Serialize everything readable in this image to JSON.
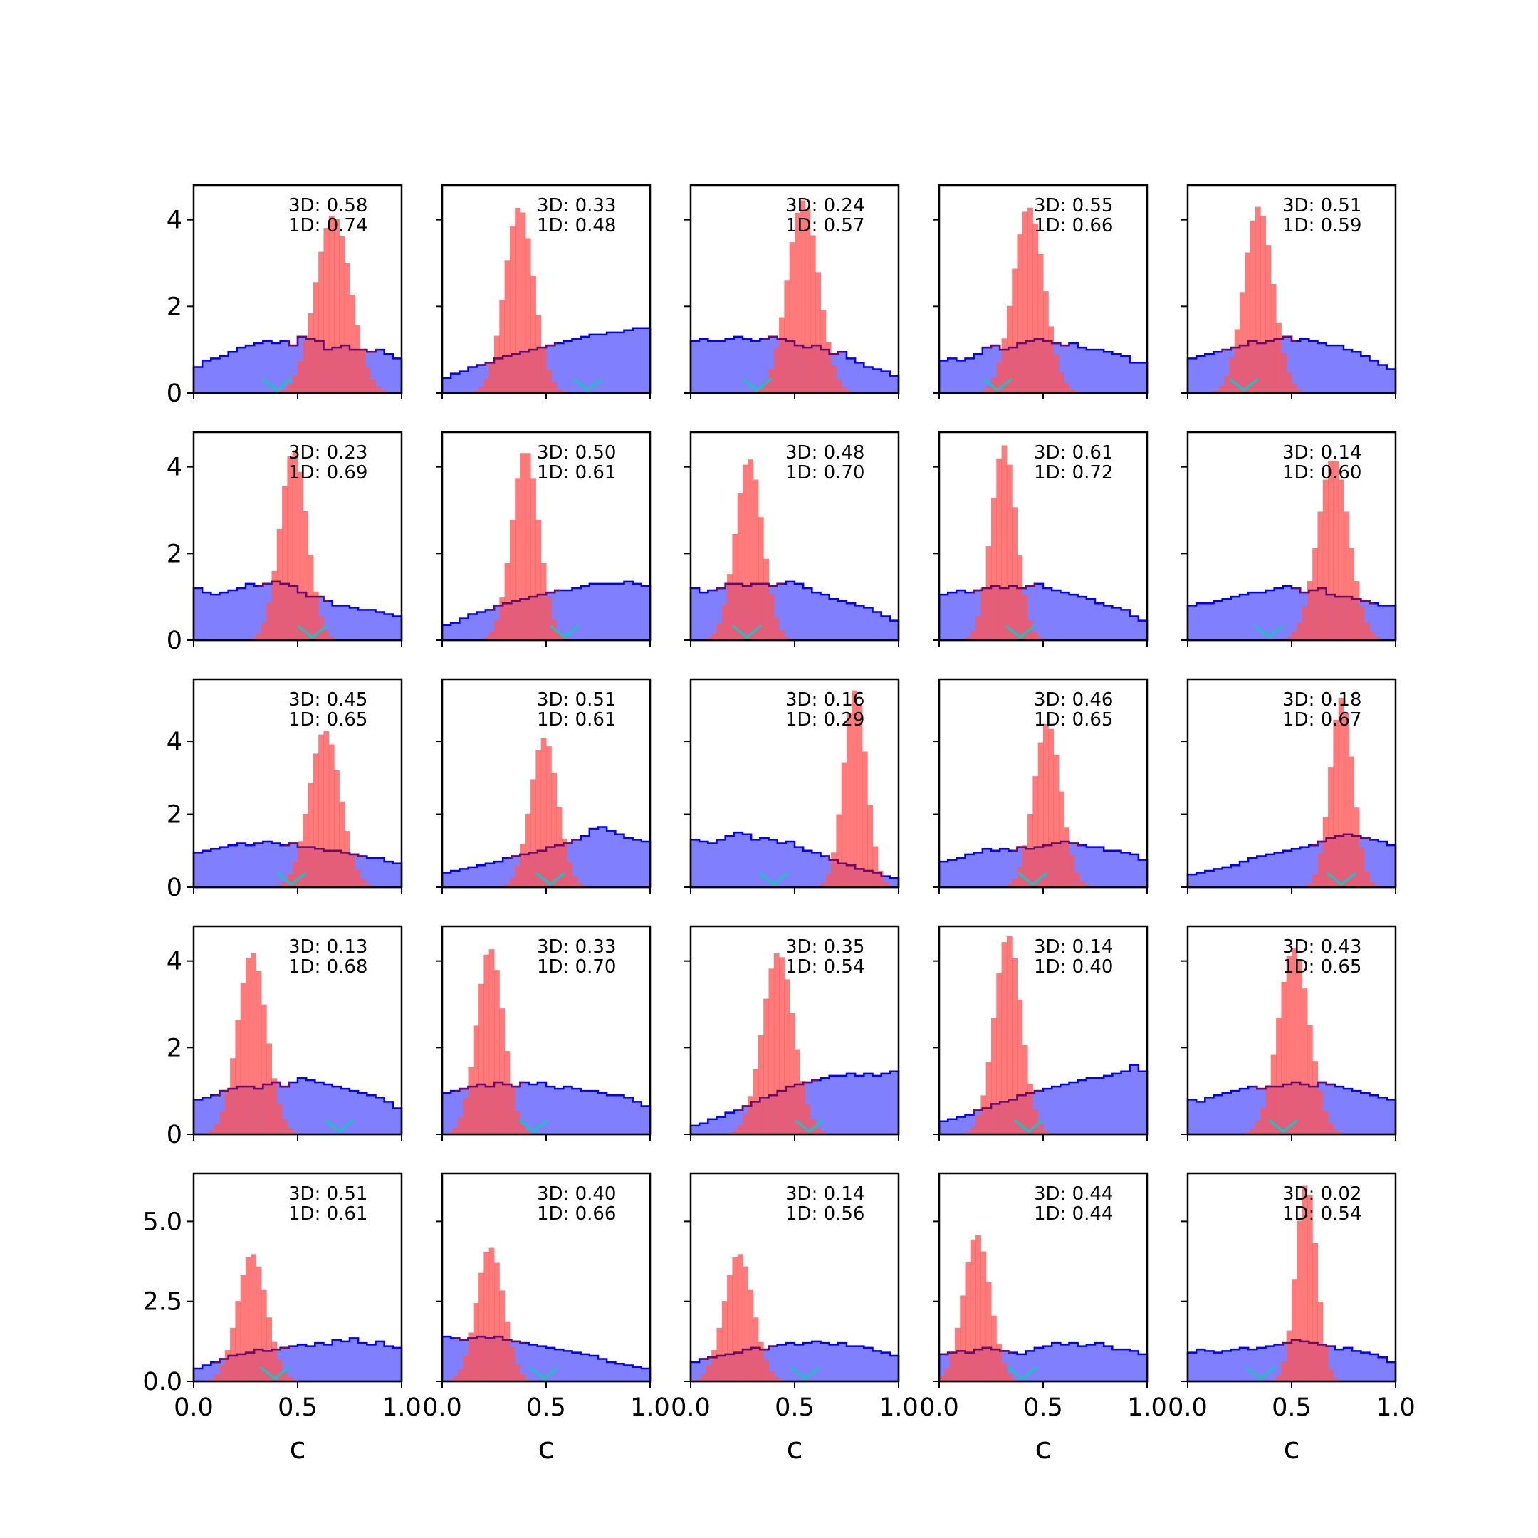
{
  "chart_data": {
    "type": "histogram-grid",
    "rows": 5,
    "cols": 5,
    "xlabel": "c",
    "xlim": [
      0,
      1
    ],
    "x_ticks": [
      0.0,
      0.5,
      1.0
    ],
    "x_tick_labels": [
      "0.0",
      "0.5",
      "1.0"
    ],
    "row_ylim": [
      [
        0,
        4.8
      ],
      [
        0,
        4.8
      ],
      [
        0,
        5.7
      ],
      [
        0,
        4.8
      ],
      [
        0,
        6.5
      ]
    ],
    "row_y_ticks": [
      [
        0,
        2,
        4
      ],
      [
        0,
        2,
        4
      ],
      [
        0,
        2,
        4
      ],
      [
        0,
        2,
        4
      ],
      [
        0.0,
        2.5,
        5.0
      ]
    ],
    "row_y_tick_labels": [
      [
        "0",
        "2",
        "4"
      ],
      [
        "0",
        "2",
        "4"
      ],
      [
        "0",
        "2",
        "4"
      ],
      [
        "0",
        "2",
        "4"
      ],
      [
        "0.0",
        "2.5",
        "5.0"
      ]
    ],
    "colors": {
      "blue_fill": "#8080ff",
      "blue_edge": "#0000ee",
      "red_fill": "#ff5555",
      "overlap_edge": "#6a0a6a",
      "marker": "#20c0c0"
    },
    "panels": [
      {
        "label_3d": "3D: 0.58",
        "label_1d": "1D: 0.74",
        "marker": 0.4,
        "blue": [
          0.6,
          0.75,
          0.8,
          0.85,
          0.95,
          1.05,
          1.1,
          1.15,
          1.2,
          1.15,
          1.2,
          1.1,
          1.3,
          1.25,
          1.2,
          1.0,
          1.05,
          1.1,
          1.0,
          1.0,
          0.95,
          1.0,
          0.9,
          0.8
        ],
        "red_c": 0.67,
        "red_s": 0.085,
        "red_peak": 4.1
      },
      {
        "label_3d": "3D: 0.33",
        "label_1d": "1D: 0.48",
        "marker": 0.7,
        "blue": [
          0.35,
          0.45,
          0.5,
          0.6,
          0.65,
          0.7,
          0.8,
          0.85,
          0.9,
          0.95,
          1.0,
          1.05,
          1.1,
          1.15,
          1.2,
          1.25,
          1.3,
          1.35,
          1.35,
          1.4,
          1.4,
          1.45,
          1.5,
          1.5
        ],
        "red_c": 0.37,
        "red_s": 0.07,
        "red_peak": 4.3
      },
      {
        "label_3d": "3D: 0.24",
        "label_1d": "1D: 0.57",
        "marker": 0.32,
        "blue": [
          1.2,
          1.25,
          1.2,
          1.2,
          1.25,
          1.3,
          1.25,
          1.2,
          1.25,
          1.3,
          1.25,
          1.2,
          1.1,
          1.05,
          1.1,
          1.0,
          0.9,
          0.95,
          0.8,
          0.7,
          0.6,
          0.55,
          0.5,
          0.4
        ],
        "red_c": 0.54,
        "red_s": 0.075,
        "red_peak": 4.45
      },
      {
        "label_3d": "3D: 0.55",
        "label_1d": "1D: 0.66",
        "marker": 0.28,
        "blue": [
          0.75,
          0.8,
          0.75,
          0.8,
          0.9,
          1.05,
          1.1,
          1.0,
          1.05,
          1.15,
          1.2,
          1.25,
          1.2,
          1.15,
          1.1,
          1.15,
          1.05,
          1.0,
          1.0,
          0.95,
          0.9,
          0.85,
          0.7,
          0.7
        ],
        "red_c": 0.43,
        "red_s": 0.075,
        "red_peak": 4.3
      },
      {
        "label_3d": "3D: 0.51",
        "label_1d": "1D: 0.59",
        "marker": 0.27,
        "blue": [
          0.8,
          0.85,
          0.9,
          0.95,
          1.0,
          1.05,
          1.1,
          1.2,
          1.15,
          1.2,
          1.25,
          1.3,
          1.2,
          1.25,
          1.2,
          1.15,
          1.1,
          1.1,
          1.0,
          0.95,
          0.85,
          0.75,
          0.65,
          0.55
        ],
        "red_c": 0.34,
        "red_s": 0.07,
        "red_peak": 4.3
      },
      {
        "label_3d": "3D: 0.23",
        "label_1d": "1D: 0.69",
        "marker": 0.57,
        "blue": [
          1.2,
          1.1,
          1.05,
          1.1,
          1.15,
          1.2,
          1.3,
          1.25,
          1.3,
          1.35,
          1.3,
          1.25,
          1.1,
          1.0,
          1.0,
          0.9,
          0.8,
          0.8,
          0.75,
          0.7,
          0.7,
          0.65,
          0.6,
          0.55
        ],
        "red_c": 0.48,
        "red_s": 0.065,
        "red_peak": 4.4
      },
      {
        "label_3d": "3D: 0.50",
        "label_1d": "1D: 0.61",
        "marker": 0.59,
        "blue": [
          0.35,
          0.4,
          0.5,
          0.6,
          0.65,
          0.7,
          0.8,
          0.85,
          0.9,
          0.95,
          1.0,
          1.05,
          1.1,
          1.15,
          1.15,
          1.2,
          1.25,
          1.3,
          1.3,
          1.3,
          1.3,
          1.35,
          1.3,
          1.25
        ],
        "red_c": 0.4,
        "red_s": 0.065,
        "red_peak": 4.4
      },
      {
        "label_3d": "3D: 0.48",
        "label_1d": "1D: 0.70",
        "marker": 0.27,
        "blue": [
          1.2,
          1.1,
          1.15,
          1.2,
          1.3,
          1.3,
          1.25,
          1.3,
          1.3,
          1.25,
          1.3,
          1.35,
          1.3,
          1.2,
          1.1,
          1.05,
          0.95,
          0.9,
          0.85,
          0.8,
          0.75,
          0.65,
          0.55,
          0.45
        ],
        "red_c": 0.28,
        "red_s": 0.065,
        "red_peak": 4.2
      },
      {
        "label_3d": "3D: 0.61",
        "label_1d": "1D: 0.72",
        "marker": 0.39,
        "blue": [
          1.05,
          1.1,
          1.15,
          1.1,
          1.15,
          1.2,
          1.25,
          1.2,
          1.25,
          1.2,
          1.25,
          1.3,
          1.2,
          1.15,
          1.1,
          1.05,
          1.0,
          0.95,
          0.85,
          0.8,
          0.75,
          0.7,
          0.55,
          0.45
        ],
        "red_c": 0.31,
        "red_s": 0.06,
        "red_peak": 4.5
      },
      {
        "label_3d": "3D: 0.14",
        "label_1d": "1D: 0.60",
        "marker": 0.39,
        "blue": [
          0.8,
          0.85,
          0.85,
          0.9,
          0.95,
          1.0,
          1.05,
          1.1,
          1.1,
          1.15,
          1.2,
          1.25,
          1.2,
          1.1,
          1.15,
          1.2,
          1.05,
          1.0,
          1.0,
          0.95,
          0.9,
          0.85,
          0.8,
          0.8
        ],
        "red_c": 0.7,
        "red_s": 0.075,
        "red_peak": 4.2
      },
      {
        "label_3d": "3D: 0.45",
        "label_1d": "1D: 0.65",
        "marker": 0.47,
        "blue": [
          0.95,
          1.0,
          1.05,
          1.1,
          1.15,
          1.2,
          1.15,
          1.2,
          1.25,
          1.2,
          1.15,
          1.2,
          1.1,
          1.1,
          1.05,
          1.0,
          1.0,
          0.95,
          0.9,
          0.85,
          0.8,
          0.8,
          0.7,
          0.65
        ],
        "red_c": 0.63,
        "red_s": 0.075,
        "red_peak": 4.3
      },
      {
        "label_3d": "3D: 0.51",
        "label_1d": "1D: 0.61",
        "marker": 0.52,
        "blue": [
          0.4,
          0.45,
          0.5,
          0.55,
          0.6,
          0.65,
          0.7,
          0.8,
          0.85,
          0.9,
          0.95,
          1.0,
          1.1,
          1.15,
          1.2,
          1.3,
          1.4,
          1.6,
          1.65,
          1.55,
          1.45,
          1.35,
          1.3,
          1.25
        ],
        "red_c": 0.49,
        "red_s": 0.065,
        "red_peak": 4.1
      },
      {
        "label_3d": "3D: 0.16",
        "label_1d": "1D: 0.29",
        "marker": 0.4,
        "blue": [
          1.3,
          1.25,
          1.2,
          1.3,
          1.4,
          1.5,
          1.45,
          1.3,
          1.35,
          1.3,
          1.2,
          1.25,
          1.1,
          1.0,
          0.95,
          0.85,
          0.75,
          0.65,
          0.6,
          0.5,
          0.45,
          0.4,
          0.3,
          0.25
        ],
        "red_c": 0.79,
        "red_s": 0.055,
        "red_peak": 5.4
      },
      {
        "label_3d": "3D: 0.46",
        "label_1d": "1D: 0.65",
        "marker": 0.45,
        "blue": [
          0.7,
          0.75,
          0.8,
          0.9,
          0.95,
          1.05,
          1.0,
          1.05,
          1.0,
          1.1,
          1.05,
          1.1,
          1.15,
          1.2,
          1.25,
          1.2,
          1.15,
          1.1,
          1.1,
          1.0,
          1.0,
          0.95,
          0.9,
          0.75
        ],
        "red_c": 0.52,
        "red_s": 0.065,
        "red_peak": 4.5
      },
      {
        "label_3d": "3D: 0.18",
        "label_1d": "1D: 0.67",
        "marker": 0.74,
        "blue": [
          0.35,
          0.4,
          0.45,
          0.5,
          0.55,
          0.6,
          0.7,
          0.8,
          0.85,
          0.9,
          0.95,
          1.0,
          1.05,
          1.1,
          1.15,
          1.25,
          1.35,
          1.4,
          1.45,
          1.4,
          1.35,
          1.3,
          1.25,
          1.15
        ],
        "red_c": 0.74,
        "red_s": 0.055,
        "red_peak": 5.2
      },
      {
        "label_3d": "3D: 0.13",
        "label_1d": "1D: 0.68",
        "marker": 0.7,
        "blue": [
          0.8,
          0.85,
          0.9,
          1.0,
          1.05,
          1.1,
          1.1,
          1.05,
          1.15,
          1.2,
          1.1,
          1.2,
          1.3,
          1.25,
          1.2,
          1.15,
          1.1,
          1.05,
          1.0,
          0.95,
          0.9,
          0.85,
          0.75,
          0.6
        ],
        "red_c": 0.28,
        "red_s": 0.07,
        "red_peak": 4.2
      },
      {
        "label_3d": "3D: 0.33",
        "label_1d": "1D: 0.70",
        "marker": 0.44,
        "blue": [
          0.95,
          1.0,
          1.05,
          1.1,
          1.15,
          1.1,
          1.2,
          1.15,
          1.1,
          1.2,
          1.15,
          1.2,
          1.1,
          1.05,
          1.1,
          1.05,
          1.0,
          1.0,
          0.95,
          0.9,
          0.9,
          0.85,
          0.75,
          0.65
        ],
        "red_c": 0.23,
        "red_s": 0.065,
        "red_peak": 4.3
      },
      {
        "label_3d": "3D: 0.35",
        "label_1d": "1D: 0.54",
        "marker": 0.57,
        "blue": [
          0.2,
          0.25,
          0.35,
          0.4,
          0.5,
          0.55,
          0.65,
          0.75,
          0.85,
          0.9,
          1.0,
          1.1,
          1.15,
          1.2,
          1.25,
          1.3,
          1.35,
          1.35,
          1.4,
          1.35,
          1.4,
          1.35,
          1.4,
          1.45
        ],
        "red_c": 0.42,
        "red_s": 0.075,
        "red_peak": 4.2
      },
      {
        "label_3d": "3D: 0.14",
        "label_1d": "1D: 0.40",
        "marker": 0.43,
        "blue": [
          0.3,
          0.35,
          0.4,
          0.45,
          0.55,
          0.6,
          0.7,
          0.75,
          0.8,
          0.9,
          0.95,
          1.0,
          1.05,
          1.1,
          1.15,
          1.2,
          1.25,
          1.3,
          1.3,
          1.35,
          1.4,
          1.45,
          1.6,
          1.45
        ],
        "red_c": 0.33,
        "red_s": 0.065,
        "red_peak": 4.6
      },
      {
        "label_3d": "3D: 0.43",
        "label_1d": "1D: 0.65",
        "marker": 0.46,
        "blue": [
          0.8,
          0.75,
          0.85,
          0.9,
          0.95,
          1.0,
          1.05,
          1.1,
          1.05,
          1.1,
          1.1,
          1.15,
          1.2,
          1.15,
          1.1,
          1.2,
          1.15,
          1.1,
          1.05,
          1.0,
          0.95,
          0.9,
          0.85,
          0.8
        ],
        "red_c": 0.51,
        "red_s": 0.075,
        "red_peak": 4.3
      },
      {
        "label_3d": "3D: 0.51",
        "label_1d": "1D: 0.61",
        "marker": 0.39,
        "blue": [
          0.4,
          0.5,
          0.6,
          0.7,
          0.8,
          0.85,
          0.9,
          1.0,
          0.95,
          1.0,
          1.05,
          1.1,
          1.15,
          1.1,
          1.2,
          1.15,
          1.3,
          1.25,
          1.35,
          1.2,
          1.15,
          1.25,
          1.1,
          1.05
        ],
        "red_c": 0.28,
        "red_s": 0.07,
        "red_peak": 4.0
      },
      {
        "label_3d": "3D: 0.40",
        "label_1d": "1D: 0.66",
        "marker": 0.49,
        "blue": [
          1.4,
          1.35,
          1.3,
          1.35,
          1.4,
          1.35,
          1.4,
          1.3,
          1.25,
          1.2,
          1.15,
          1.1,
          1.05,
          1.0,
          0.95,
          0.9,
          0.85,
          0.8,
          0.7,
          0.6,
          0.55,
          0.5,
          0.45,
          0.4
        ],
        "red_c": 0.23,
        "red_s": 0.065,
        "red_peak": 4.2
      },
      {
        "label_3d": "3D: 0.14",
        "label_1d": "1D: 0.56",
        "marker": 0.55,
        "blue": [
          0.6,
          0.7,
          0.75,
          0.8,
          0.85,
          0.9,
          1.0,
          1.05,
          1.0,
          1.1,
          1.15,
          1.2,
          1.15,
          1.2,
          1.25,
          1.2,
          1.15,
          1.2,
          1.1,
          1.1,
          1.05,
          0.95,
          0.9,
          0.8
        ],
        "red_c": 0.23,
        "red_s": 0.07,
        "red_peak": 4.0
      },
      {
        "label_3d": "3D: 0.44",
        "label_1d": "1D: 0.44",
        "marker": 0.4,
        "blue": [
          0.85,
          0.9,
          0.95,
          0.9,
          1.0,
          1.05,
          1.0,
          0.95,
          0.9,
          0.85,
          0.95,
          1.05,
          1.1,
          1.2,
          1.15,
          1.2,
          1.1,
          1.15,
          1.2,
          1.1,
          1.0,
          1.0,
          0.95,
          0.85
        ],
        "red_c": 0.18,
        "red_s": 0.065,
        "red_peak": 4.6
      },
      {
        "label_3d": "3D: 0.02",
        "label_1d": "1D: 0.54",
        "marker": 0.35,
        "blue": [
          0.9,
          1.0,
          0.95,
          0.9,
          0.95,
          1.0,
          1.05,
          1.0,
          1.05,
          1.1,
          1.15,
          1.2,
          1.3,
          1.25,
          1.2,
          1.15,
          1.1,
          1.0,
          1.05,
          0.95,
          0.9,
          0.85,
          0.75,
          0.6
        ],
        "red_c": 0.57,
        "red_s": 0.05,
        "red_peak": 6.2
      }
    ]
  }
}
